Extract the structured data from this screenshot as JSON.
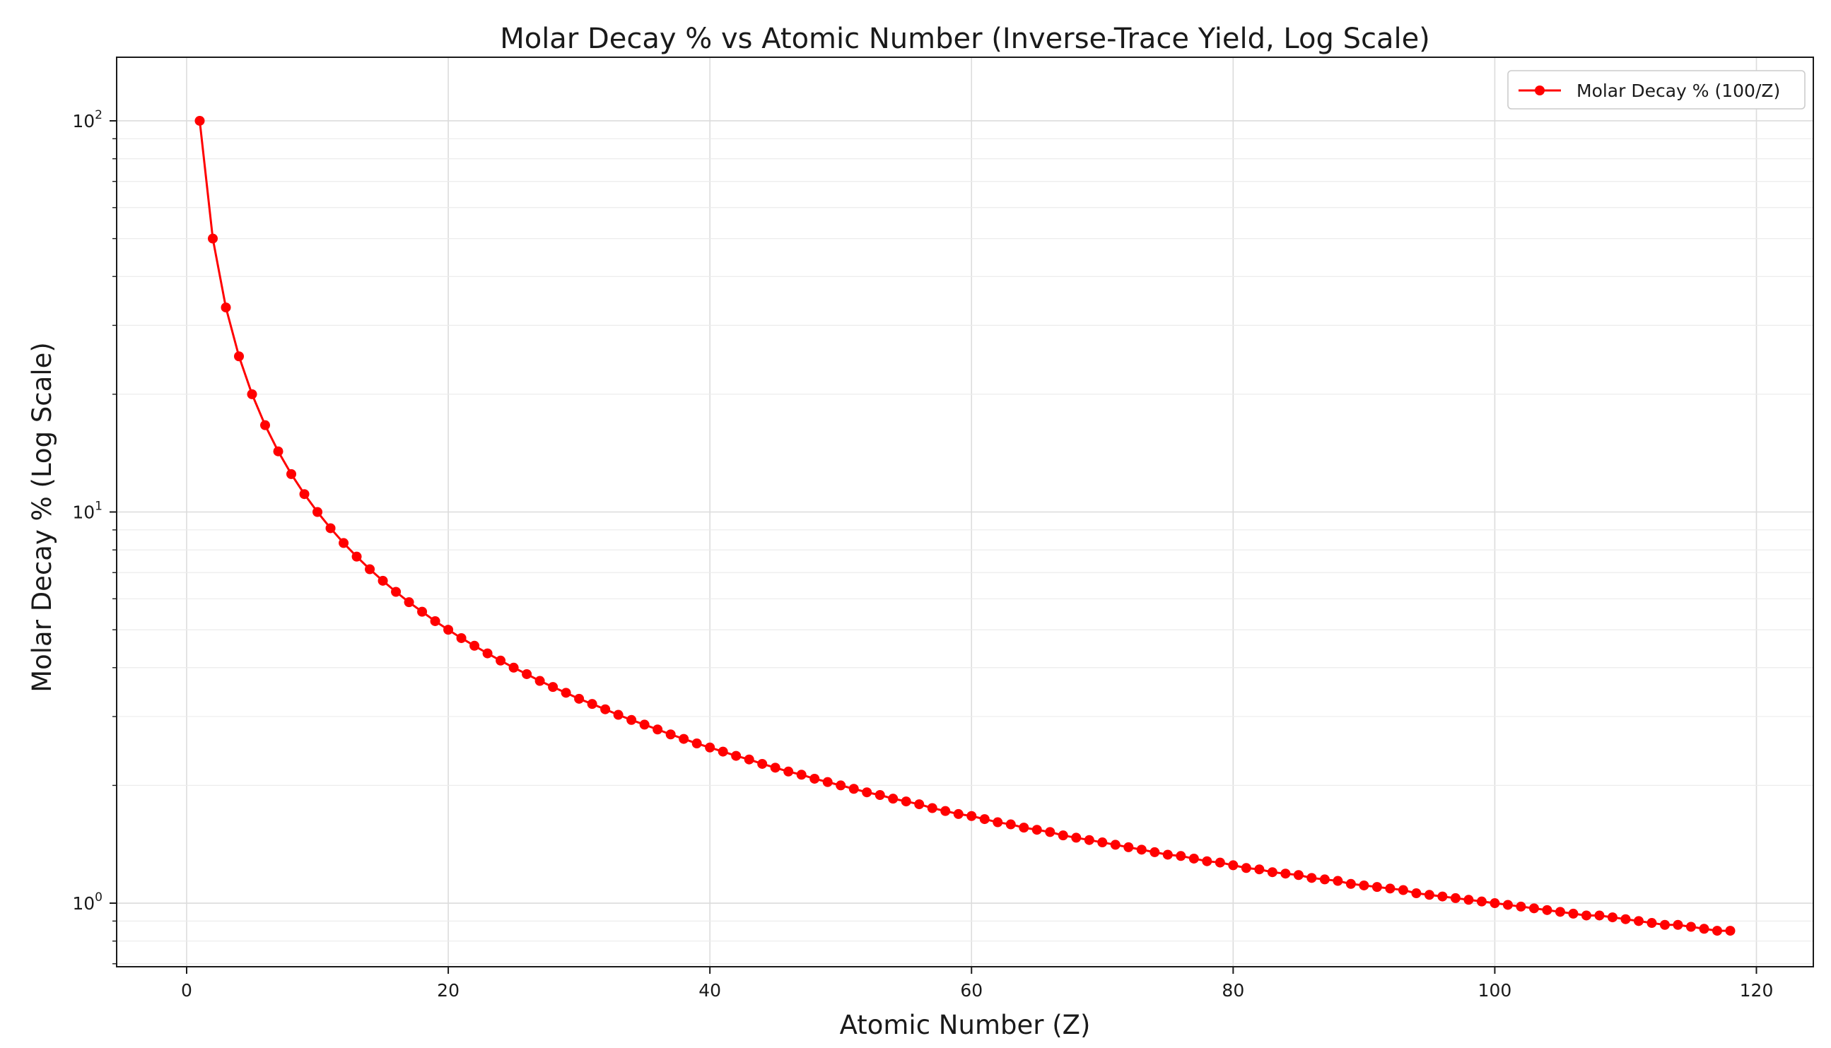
{
  "chart_data": {
    "type": "line",
    "title": "Molar Decay % vs Atomic Number (Inverse-Trace Yield, Log Scale)",
    "xlabel": "Atomic Number (Z)",
    "ylabel": "Molar Decay % (Log Scale)",
    "x_scale": "linear",
    "y_scale": "log",
    "xlim": [
      -5.35,
      124.35
    ],
    "ylim": [
      0.6878,
      145.4
    ],
    "x_ticks": [
      0,
      20,
      40,
      60,
      80,
      100,
      120
    ],
    "x_tick_labels": [
      "0",
      "20",
      "40",
      "60",
      "80",
      "100",
      "120"
    ],
    "y_ticks": [
      1,
      10,
      100
    ],
    "y_tick_labels": [
      {
        "base": "10",
        "exp": "0"
      },
      {
        "base": "10",
        "exp": "1"
      },
      {
        "base": "10",
        "exp": "2"
      }
    ],
    "grid": true,
    "legend_position": "upper right",
    "series": [
      {
        "name": "Molar Decay % (100/Z)",
        "color": "#ff0000",
        "marker": "circle",
        "x": [
          1,
          2,
          3,
          4,
          5,
          6,
          7,
          8,
          9,
          10,
          11,
          12,
          13,
          14,
          15,
          16,
          17,
          18,
          19,
          20,
          21,
          22,
          23,
          24,
          25,
          26,
          27,
          28,
          29,
          30,
          31,
          32,
          33,
          34,
          35,
          36,
          37,
          38,
          39,
          40,
          41,
          42,
          43,
          44,
          45,
          46,
          47,
          48,
          49,
          50,
          51,
          52,
          53,
          54,
          55,
          56,
          57,
          58,
          59,
          60,
          61,
          62,
          63,
          64,
          65,
          66,
          67,
          68,
          69,
          70,
          71,
          72,
          73,
          74,
          75,
          76,
          77,
          78,
          79,
          80,
          81,
          82,
          83,
          84,
          85,
          86,
          87,
          88,
          89,
          90,
          91,
          92,
          93,
          94,
          95,
          96,
          97,
          98,
          99,
          100,
          101,
          102,
          103,
          104,
          105,
          106,
          107,
          108,
          109,
          110,
          111,
          112,
          113,
          114,
          115,
          116,
          117,
          118
        ],
        "y": [
          100.0,
          50.0,
          33.33,
          25.0,
          20.0,
          16.67,
          14.29,
          12.5,
          11.11,
          10.0,
          9.09,
          8.33,
          7.69,
          7.14,
          6.67,
          6.25,
          5.88,
          5.56,
          5.26,
          5.0,
          4.76,
          4.55,
          4.35,
          4.17,
          4.0,
          3.85,
          3.7,
          3.57,
          3.45,
          3.33,
          3.23,
          3.13,
          3.03,
          2.94,
          2.86,
          2.78,
          2.7,
          2.63,
          2.56,
          2.5,
          2.44,
          2.38,
          2.33,
          2.27,
          2.22,
          2.17,
          2.13,
          2.08,
          2.04,
          2.0,
          1.96,
          1.92,
          1.89,
          1.85,
          1.82,
          1.79,
          1.75,
          1.72,
          1.69,
          1.67,
          1.64,
          1.61,
          1.59,
          1.56,
          1.54,
          1.52,
          1.49,
          1.47,
          1.45,
          1.43,
          1.41,
          1.39,
          1.37,
          1.35,
          1.33,
          1.32,
          1.3,
          1.28,
          1.27,
          1.25,
          1.23,
          1.22,
          1.2,
          1.19,
          1.18,
          1.16,
          1.15,
          1.14,
          1.12,
          1.11,
          1.1,
          1.09,
          1.08,
          1.06,
          1.05,
          1.04,
          1.03,
          1.02,
          1.01,
          1.0,
          0.99,
          0.98,
          0.97,
          0.96,
          0.95,
          0.94,
          0.93,
          0.93,
          0.92,
          0.91,
          0.9,
          0.89,
          0.88,
          0.88,
          0.87,
          0.86,
          0.85,
          0.85
        ]
      }
    ]
  }
}
